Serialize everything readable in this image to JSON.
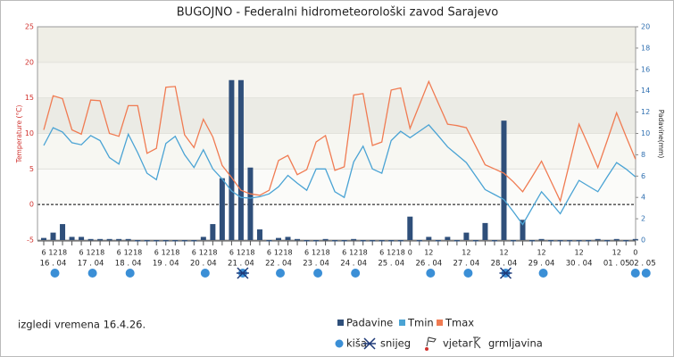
{
  "chart_data": {
    "type": "bar-line",
    "title": "BUGOJNO - Federalni hidrometeorološki zavod Sarajevo",
    "footnote": "izgledi vremena 16.4.26.",
    "ylabel": "Temperature (°C)",
    "y2label": "Padavine(mm)",
    "ylim": [
      -5,
      25
    ],
    "yticks": [
      -5,
      0,
      5,
      10,
      15,
      20,
      25
    ],
    "y2lim": [
      0,
      20
    ],
    "y2ticks": [
      0,
      2,
      4,
      6,
      8,
      10,
      12,
      14,
      16,
      18,
      20
    ],
    "categories": [
      "6",
      "12",
      "18",
      null,
      "6",
      "12",
      "18",
      null,
      "6",
      "12",
      "18",
      null,
      "6",
      "12",
      "18",
      null,
      "6",
      "12",
      "18",
      null,
      "6",
      "12",
      "18",
      null,
      "6",
      "12",
      "18",
      null,
      "6",
      "12",
      "18",
      null,
      "6",
      "12",
      "18",
      null,
      "6",
      "12",
      "18",
      "0",
      null,
      "12",
      null,
      null,
      null,
      "12",
      null,
      null,
      null,
      "12",
      null,
      null,
      null,
      "12",
      null,
      null,
      null,
      "12",
      null,
      null,
      null,
      "12",
      null,
      "0"
    ],
    "dates": [
      "16 . 04",
      "17 . 04",
      "18 . 04",
      "19 . 04",
      "20 . 04",
      "21 . 04",
      "22 . 04",
      "23 . 04",
      "24 . 04",
      "25 . 04",
      "26 . 04",
      "27 . 04",
      "28 . 04",
      "29 . 04",
      "30 . 04",
      "01 . 05",
      "02 . 05"
    ],
    "series": [
      {
        "name": "Padavine",
        "color": "#2f4f7a",
        "axis": "y2",
        "kind": "bar",
        "values": [
          0.2,
          0.7,
          1.5,
          0.3,
          0.3,
          0.1,
          0.1,
          0.1,
          0.1,
          0.1,
          0,
          0,
          0,
          0,
          0,
          0,
          0,
          0.3,
          1.5,
          5.8,
          15.0,
          15.0,
          6.8,
          1.0,
          0,
          0.2,
          0.3,
          0.1,
          0,
          0,
          0.1,
          0,
          0,
          0.1,
          0,
          0,
          0,
          0,
          0,
          2.2,
          0,
          0.3,
          0,
          0.3,
          0,
          0.7,
          0,
          1.6,
          0,
          11.2,
          0,
          1.9,
          0,
          0.1,
          0,
          0,
          0,
          0,
          0,
          0.1,
          0,
          0.1,
          0,
          0.1
        ]
      },
      {
        "name": "Tmin",
        "color": "#4aa3d4",
        "kind": "line",
        "values": [
          8.3,
          10.8,
          10.2,
          8.7,
          8.4,
          9.7,
          9.0,
          6.6,
          5.7,
          9.9,
          7.3,
          4.4,
          3.5,
          8.6,
          9.6,
          7.0,
          5.2,
          7.7,
          5.0,
          3.6,
          1.9,
          1.0,
          0.9,
          1.1,
          1.5,
          2.5,
          4.1,
          3.0,
          2.0,
          5.0,
          5.0,
          1.8,
          1.0,
          6.0,
          8.2,
          5.0,
          4.4,
          9.0,
          10.3,
          9.4,
          10.3,
          11.2,
          9.7,
          8.1,
          7.0,
          5.9,
          4.0,
          2.1,
          1.4,
          0.7,
          -1.0,
          -2.8,
          -0.5,
          1.8,
          0.3,
          -1.3,
          1.1,
          3.4,
          2.6,
          1.8,
          3.9,
          5.9,
          5.0,
          3.9
        ]
      },
      {
        "name": "Tmax",
        "color": "#f07b52",
        "kind": "line",
        "values": [
          10.5,
          15.3,
          14.9,
          10.5,
          9.9,
          14.7,
          14.6,
          10.0,
          9.6,
          13.9,
          13.9,
          7.2,
          7.9,
          16.5,
          16.6,
          9.8,
          8.0,
          12.0,
          9.5,
          5.5,
          3.8,
          2.0,
          1.5,
          1.3,
          2.0,
          6.2,
          6.9,
          4.2,
          4.9,
          8.8,
          9.7,
          4.8,
          5.3,
          15.4,
          15.6,
          8.3,
          8.8,
          16.1,
          16.4,
          10.7,
          14.0,
          17.3,
          14.3,
          11.3,
          11.1,
          10.8,
          8.2,
          5.6,
          5.0,
          4.4,
          3.2,
          1.8,
          3.9,
          6.1,
          3.3,
          0.5,
          5.9,
          11.3,
          8.3,
          5.2,
          9.0,
          12.9,
          9.6,
          6.4
        ]
      }
    ],
    "symbols": [
      "kiša",
      "snijeg",
      "vjetar",
      "grmljavina"
    ],
    "weather": [
      [
        "kiša"
      ],
      [
        "kiša"
      ],
      [
        "kiša"
      ],
      [],
      [
        "kiša"
      ],
      [
        "kiša",
        "snijeg"
      ],
      [
        "kiša"
      ],
      [
        "kiša"
      ],
      [
        "kiša"
      ],
      [],
      [
        "kiša"
      ],
      [
        "kiša"
      ],
      [
        "kiša",
        "snijeg"
      ],
      [
        "kiša"
      ],
      [],
      [],
      [
        "kiša",
        "kiša"
      ]
    ],
    "grid": true
  }
}
